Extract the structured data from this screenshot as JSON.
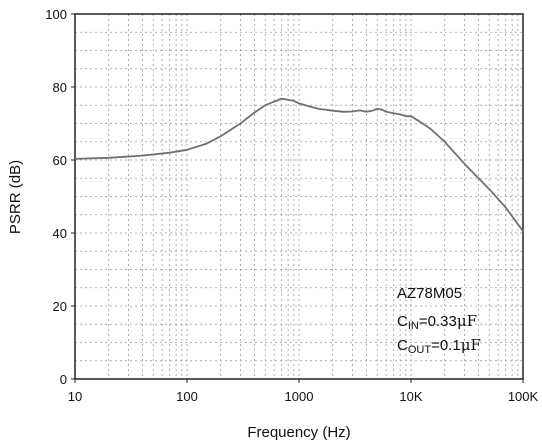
{
  "chart_data": {
    "type": "line",
    "xscale": "log",
    "xlabel": "Frequency (Hz)",
    "ylabel": "PSRR (dB)",
    "xlim": [
      10,
      100000
    ],
    "ylim": [
      0,
      100
    ],
    "grid": true,
    "x_ticks": [
      {
        "value": 10,
        "label": "10"
      },
      {
        "value": 100,
        "label": "100"
      },
      {
        "value": 1000,
        "label": "1000"
      },
      {
        "value": 10000,
        "label": "10K"
      },
      {
        "value": 100000,
        "label": "100K"
      }
    ],
    "y_ticks": [
      {
        "value": 0,
        "label": "0"
      },
      {
        "value": 20,
        "label": "20"
      },
      {
        "value": 40,
        "label": "40"
      },
      {
        "value": 60,
        "label": "60"
      },
      {
        "value": 80,
        "label": "80"
      },
      {
        "value": 100,
        "label": "100"
      }
    ],
    "annotation": {
      "device": "AZ78M05",
      "cin_main": "C",
      "cin_sub": "IN",
      "cin_value": "=0.33",
      "cout_main": "C",
      "cout_sub": "OUT",
      "cout_value": "=0.1",
      "unit_mu": "μ",
      "unit_f": "F"
    },
    "series": [
      {
        "color": "#707070",
        "x": [
          10,
          20,
          40,
          70,
          100,
          150,
          200,
          300,
          400,
          500,
          600,
          700,
          800,
          900,
          1000,
          1200,
          1500,
          2000,
          2500,
          3000,
          3500,
          4000,
          4500,
          5000,
          5500,
          6000,
          7000,
          8000,
          9000,
          10000,
          12000,
          15000,
          20000,
          30000,
          50000,
          70000,
          100000
        ],
        "y": [
          60.3,
          60.6,
          61.2,
          62.0,
          62.8,
          64.5,
          66.5,
          70.0,
          73.0,
          75.0,
          76.0,
          76.8,
          76.5,
          76.2,
          75.5,
          74.8,
          74.0,
          73.5,
          73.2,
          73.3,
          73.6,
          73.2,
          73.5,
          74.0,
          73.8,
          73.2,
          72.8,
          72.5,
          72.0,
          72.0,
          70.5,
          68.5,
          65.0,
          59.0,
          52.0,
          47.0,
          40.5
        ]
      }
    ]
  }
}
